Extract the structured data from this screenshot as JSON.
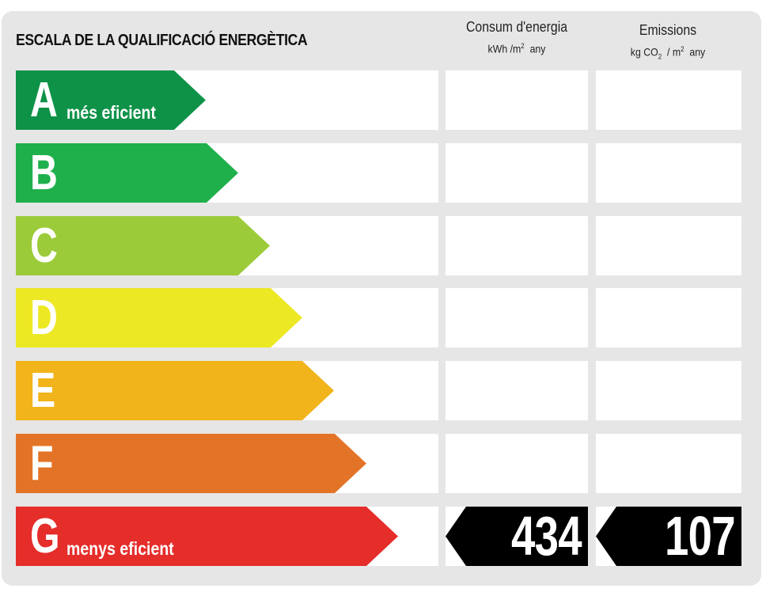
{
  "header": {
    "title": "ESCALA DE LA QUALIFICACIÓ ENERGÈTICA",
    "consum": {
      "label": "Consum d'energia",
      "unit_prefix": "kWh /m",
      "unit_sup": "2",
      "unit_suffix": "any"
    },
    "emissions": {
      "label": "Emissions",
      "unit_prefix": "kg CO",
      "unit_sub": "2",
      "unit_mid": " / m",
      "unit_sup": "2",
      "unit_suffix": "any"
    }
  },
  "grades": [
    {
      "letter": "A",
      "sub": "més eficient",
      "color": "#0e9248"
    },
    {
      "letter": "B",
      "sub": "",
      "color": "#1fb04b"
    },
    {
      "letter": "C",
      "sub": "",
      "color": "#9ccb3a"
    },
    {
      "letter": "D",
      "sub": "",
      "color": "#ece824"
    },
    {
      "letter": "E",
      "sub": "",
      "color": "#f1b41a"
    },
    {
      "letter": "F",
      "sub": "",
      "color": "#e37427"
    },
    {
      "letter": "G",
      "sub": "menys eficient",
      "color": "#e52d2a"
    }
  ],
  "rating": {
    "grade": "G",
    "consum_value": "434",
    "emissions_value": "107",
    "marker_color": "#000000"
  }
}
